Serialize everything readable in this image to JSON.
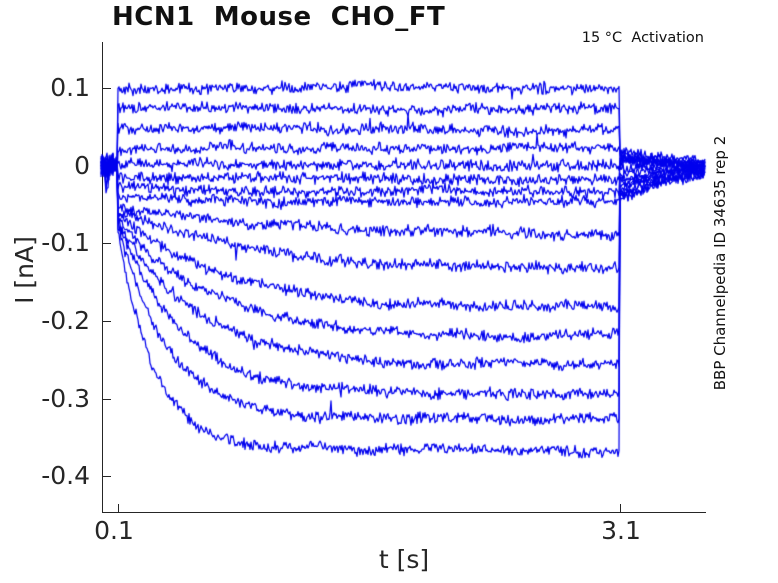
{
  "title": "HCN1  Mouse  CHO_FT",
  "annotation": "15 °C  Activation",
  "watermark": "BBP Channelpedia ID 34635 rep 2",
  "axes": {
    "x_label": "t [s]",
    "y_label": "I [nA]",
    "x_tick_labels": [
      "0.1",
      "3.1"
    ],
    "y_tick_labels": [
      "0.1",
      "0",
      "-0.1",
      "-0.2",
      "-0.3",
      "-0.4"
    ]
  },
  "chart_data": {
    "type": "line",
    "title": "HCN1  Mouse  CHO_FT",
    "xlabel": "t [s]",
    "ylabel": "I [nA]",
    "xlim": [
      0.0,
      3.61
    ],
    "ylim": [
      -0.45,
      0.15
    ],
    "x_ticks": [
      0.1,
      3.1
    ],
    "y_ticks": [
      0.1,
      0,
      -0.1,
      -0.2,
      -0.3,
      -0.4
    ],
    "grid": false,
    "legend": "none",
    "color": "#0000EE",
    "annotation": "15 °C  Activation",
    "watermark": "BBP Channelpedia ID 34635 rep 2",
    "protocol": {
      "description": "HCN1 activation voltage-step protocol: baseline at 0 nA, voltage step from 0.1 s to 3.1 s, tail currents afterwards",
      "baseline_nA": 0,
      "step_on_s": 0.1,
      "step_off_s": 3.1,
      "trace_end_s": 3.6,
      "temperature": "15 °C",
      "mode": "Activation"
    },
    "noise_peak_nA": 0.0085,
    "tail_tau_s": 0.35,
    "tail_end_nA": 0.002,
    "sweeps": [
      {
        "step_nA": 0.1,
        "steady_nA": 0.1,
        "tau_s": null,
        "tail_nA": 0.02
      },
      {
        "step_nA": 0.074,
        "steady_nA": 0.074,
        "tau_s": null,
        "tail_nA": 0.016
      },
      {
        "step_nA": 0.048,
        "steady_nA": 0.048,
        "tau_s": null,
        "tail_nA": 0.013
      },
      {
        "step_nA": 0.023,
        "steady_nA": 0.023,
        "tau_s": null,
        "tail_nA": 0.01
      },
      {
        "step_nA": 0.002,
        "steady_nA": 0.002,
        "tau_s": null,
        "tail_nA": 0.007
      },
      {
        "step_nA": -0.013,
        "steady_nA": -0.02,
        "tau_s": 1.4,
        "tail_nA": 0.003
      },
      {
        "step_nA": -0.028,
        "steady_nA": -0.035,
        "tau_s": 1.2,
        "tail_nA": -0.005
      },
      {
        "step_nA": -0.04,
        "steady_nA": -0.046,
        "tau_s": 1.0,
        "tail_nA": -0.01,
        "onset_spike_nA": 0.018
      },
      {
        "step_nA": -0.052,
        "steady_nA": -0.09,
        "tau_s": 0.95,
        "tail_nA": -0.017
      },
      {
        "step_nA": -0.058,
        "steady_nA": -0.135,
        "tau_s": 0.8,
        "tail_nA": -0.023
      },
      {
        "step_nA": -0.063,
        "steady_nA": -0.185,
        "tau_s": 0.65,
        "tail_nA": -0.029,
        "onset_spike_nA": 0.024
      },
      {
        "step_nA": -0.067,
        "steady_nA": -0.221,
        "tau_s": 0.55,
        "tail_nA": -0.033
      },
      {
        "step_nA": -0.07,
        "steady_nA": -0.256,
        "tau_s": 0.46,
        "tail_nA": -0.037,
        "onset_spike_nA": 0.03
      },
      {
        "step_nA": -0.074,
        "steady_nA": -0.294,
        "tau_s": 0.38,
        "tail_nA": -0.04
      },
      {
        "step_nA": -0.077,
        "steady_nA": -0.326,
        "tau_s": 0.3,
        "tail_nA": -0.043,
        "onset_spike_nA": 0.034
      },
      {
        "step_nA": -0.081,
        "steady_nA": -0.367,
        "tau_s": 0.22,
        "tail_nA": -0.046
      }
    ]
  }
}
